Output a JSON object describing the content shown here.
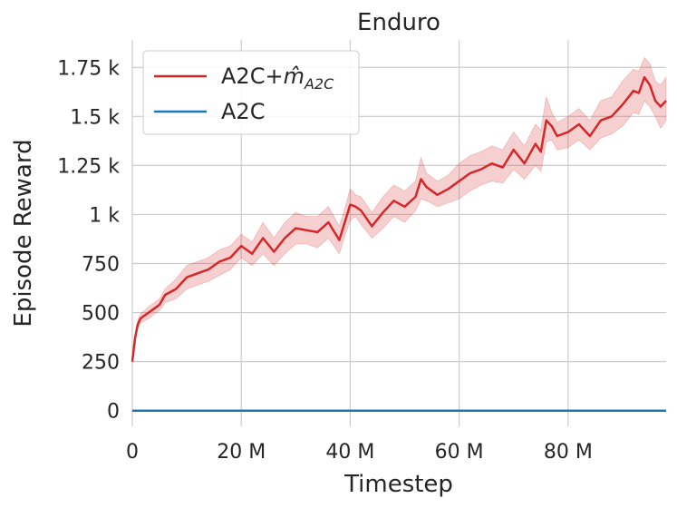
{
  "chart_data": {
    "type": "line",
    "title": "Enduro",
    "xlabel": "Timestep",
    "ylabel": "Episode Reward",
    "xlim": [
      0,
      98000000
    ],
    "ylim": [
      -80,
      1890
    ],
    "xticks": [
      0,
      20000000,
      40000000,
      60000000,
      80000000
    ],
    "xtick_labels": [
      "0",
      "20 M",
      "40 M",
      "60 M",
      "80 M"
    ],
    "yticks": [
      0,
      250,
      500,
      750,
      1000,
      1250,
      1500,
      1750
    ],
    "ytick_labels": [
      "0",
      "250",
      "500",
      "750",
      "1 k",
      "1.25 k",
      "1.5 k",
      "1.75 k"
    ],
    "grid": true,
    "legend_position": "top-left",
    "legend": {
      "label_a2c_m_main": "A2C+",
      "label_a2c_m_hat": "m̂",
      "label_a2c_m_sub": "A2C",
      "label_a2c": "A2C"
    },
    "series": [
      {
        "name": "A2C+m̂A2C",
        "color": "#d62728",
        "band_color": "#d62728",
        "x": [
          0,
          500000,
          1000000,
          1500000,
          2000000,
          3000000,
          4000000,
          5000000,
          6000000,
          8000000,
          10000000,
          12000000,
          14000000,
          16000000,
          18000000,
          20000000,
          22000000,
          24000000,
          26000000,
          28000000,
          30000000,
          32000000,
          34000000,
          36000000,
          38000000,
          39000000,
          40000000,
          41000000,
          42000000,
          44000000,
          46000000,
          48000000,
          50000000,
          52000000,
          53000000,
          54000000,
          56000000,
          58000000,
          60000000,
          62000000,
          64000000,
          66000000,
          68000000,
          70000000,
          72000000,
          74000000,
          75000000,
          76000000,
          77000000,
          78000000,
          80000000,
          82000000,
          84000000,
          86000000,
          88000000,
          90000000,
          92000000,
          93000000,
          94000000,
          95000000,
          96000000,
          97000000,
          98000000
        ],
        "values": [
          250,
          370,
          440,
          470,
          480,
          500,
          520,
          540,
          590,
          620,
          680,
          700,
          720,
          760,
          780,
          840,
          800,
          880,
          810,
          880,
          930,
          920,
          910,
          960,
          870,
          960,
          1050,
          1040,
          1020,
          940,
          1010,
          1070,
          1040,
          1090,
          1180,
          1140,
          1100,
          1130,
          1170,
          1210,
          1230,
          1260,
          1240,
          1330,
          1260,
          1360,
          1320,
          1480,
          1450,
          1400,
          1420,
          1460,
          1400,
          1480,
          1500,
          1560,
          1630,
          1620,
          1700,
          1660,
          1580,
          1550,
          1580
        ],
        "lower": [
          240,
          350,
          420,
          445,
          455,
          470,
          490,
          510,
          550,
          570,
          620,
          640,
          660,
          690,
          720,
          780,
          740,
          800,
          740,
          800,
          850,
          850,
          830,
          880,
          800,
          890,
          970,
          990,
          950,
          880,
          930,
          990,
          960,
          1020,
          1080,
          1070,
          1040,
          1060,
          1080,
          1120,
          1150,
          1170,
          1160,
          1230,
          1180,
          1250,
          1220,
          1370,
          1380,
          1330,
          1340,
          1380,
          1330,
          1390,
          1410,
          1450,
          1520,
          1510,
          1580,
          1550,
          1500,
          1440,
          1480
        ],
        "upper": [
          260,
          390,
          460,
          495,
          505,
          530,
          550,
          570,
          620,
          670,
          740,
          760,
          780,
          820,
          840,
          900,
          860,
          960,
          880,
          960,
          1010,
          990,
          990,
          1040,
          940,
          1030,
          1130,
          1100,
          1090,
          1010,
          1090,
          1150,
          1120,
          1170,
          1290,
          1210,
          1170,
          1200,
          1260,
          1300,
          1320,
          1350,
          1330,
          1420,
          1350,
          1460,
          1430,
          1600,
          1520,
          1470,
          1500,
          1540,
          1480,
          1580,
          1600,
          1680,
          1740,
          1730,
          1800,
          1770,
          1680,
          1660,
          1700
        ]
      },
      {
        "name": "A2C",
        "color": "#1f77b4",
        "x": [
          0,
          98000000
        ],
        "values": [
          0,
          0
        ]
      }
    ]
  }
}
